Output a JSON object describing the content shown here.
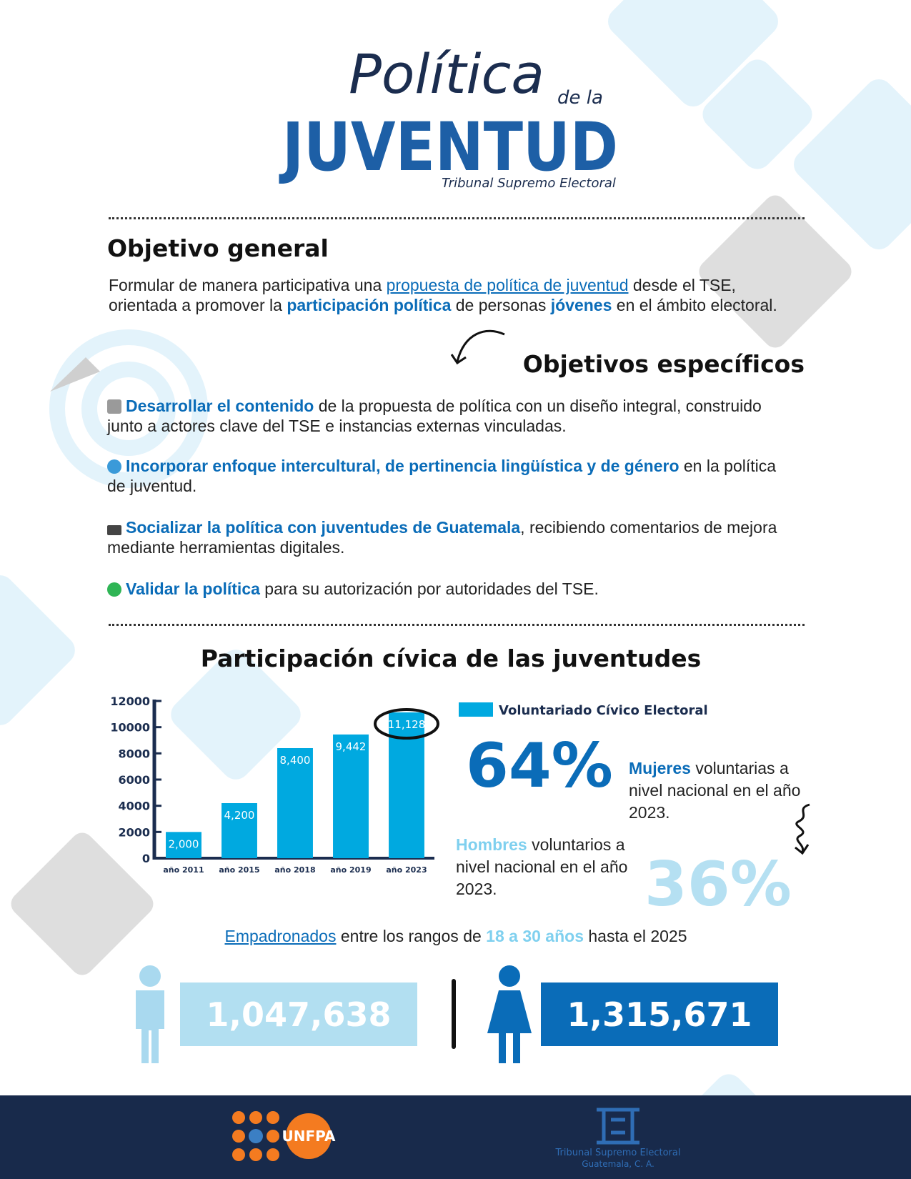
{
  "header": {
    "title_script": "Política",
    "title_connector": "de la",
    "title_main": "JUVENTUD",
    "signature": "Tribunal Supremo Electoral"
  },
  "general_objective": {
    "heading": "Objetivo general",
    "parts": [
      {
        "text": "Formular de manera participativa una ",
        "style": "plain"
      },
      {
        "text": "propuesta de política de juventud",
        "style": "link"
      },
      {
        "text": " desde el TSE, orientada a promover la ",
        "style": "plain"
      },
      {
        "text": "participación política",
        "style": "bold"
      },
      {
        "text": " de personas ",
        "style": "plain"
      },
      {
        "text": "jóvenes",
        "style": "bold"
      },
      {
        "text": " en el ámbito electoral.",
        "style": "plain"
      }
    ]
  },
  "specific_objectives": {
    "heading": "Objetivos específicos",
    "items": [
      {
        "parts": [
          {
            "text": "Desarrollar el contenido",
            "style": "bold"
          },
          {
            "text": " de la propuesta de política con un diseño integral, construido junto a actores clave del TSE e instancias externas vinculadas.",
            "style": "plain"
          }
        ]
      },
      {
        "parts": [
          {
            "text": "Incorporar enfoque intercultural, de pertinencia lingüística y de género",
            "style": "bold"
          },
          {
            "text": " en la política de juventud.",
            "style": "plain"
          }
        ]
      },
      {
        "parts": [
          {
            "text": "Socializar la política con juventudes de Guatemala",
            "style": "bold"
          },
          {
            "text": ", recibiendo comentarios de mejora mediante herramientas digitales.",
            "style": "plain"
          }
        ]
      },
      {
        "parts": [
          {
            "text": "Validar la política",
            "style": "bold"
          },
          {
            "text": " para su autorización por autoridades del TSE.",
            "style": "plain"
          }
        ]
      }
    ]
  },
  "civic_section": {
    "heading": "Participación cívica de las juventudes"
  },
  "chart_data": {
    "type": "bar",
    "categories": [
      "año 2011",
      "año 2015",
      "año 2018",
      "año 2019",
      "año 2023"
    ],
    "series": [
      {
        "name": "Voluntariado Cívico Electoral",
        "color": "#00a9e0",
        "values": [
          2000,
          4200,
          8400,
          9442,
          11128
        ],
        "value_labels": [
          "2,000",
          "4,200",
          "8,400",
          "9,442",
          "11,128"
        ]
      }
    ],
    "ylim": [
      0,
      12000
    ],
    "yticks": [
      0,
      2000,
      4000,
      6000,
      8000,
      10000,
      12000
    ]
  },
  "stats": {
    "women": {
      "percent": "64%",
      "label": "Mujeres",
      "text": "voluntarias a nivel nacional en el año 2023."
    },
    "men": {
      "percent": "36%",
      "label": "Hombres",
      "text": "voluntarios a nivel nacional en el año 2023."
    }
  },
  "registered": {
    "parts": [
      {
        "text": "Empadronados",
        "style": "link"
      },
      {
        "text": " entre los rangos de ",
        "style": "plain"
      },
      {
        "text": "18 a 30 años",
        "style": "light"
      },
      {
        "text": " hasta el 2025",
        "style": "plain"
      }
    ],
    "men": "1,047,638",
    "women": "1,315,671"
  },
  "footer": {
    "unfpa": "UNFPA",
    "tse_name": "Tribunal Supremo Electoral",
    "tse_place": "Guatemala, C. A."
  }
}
